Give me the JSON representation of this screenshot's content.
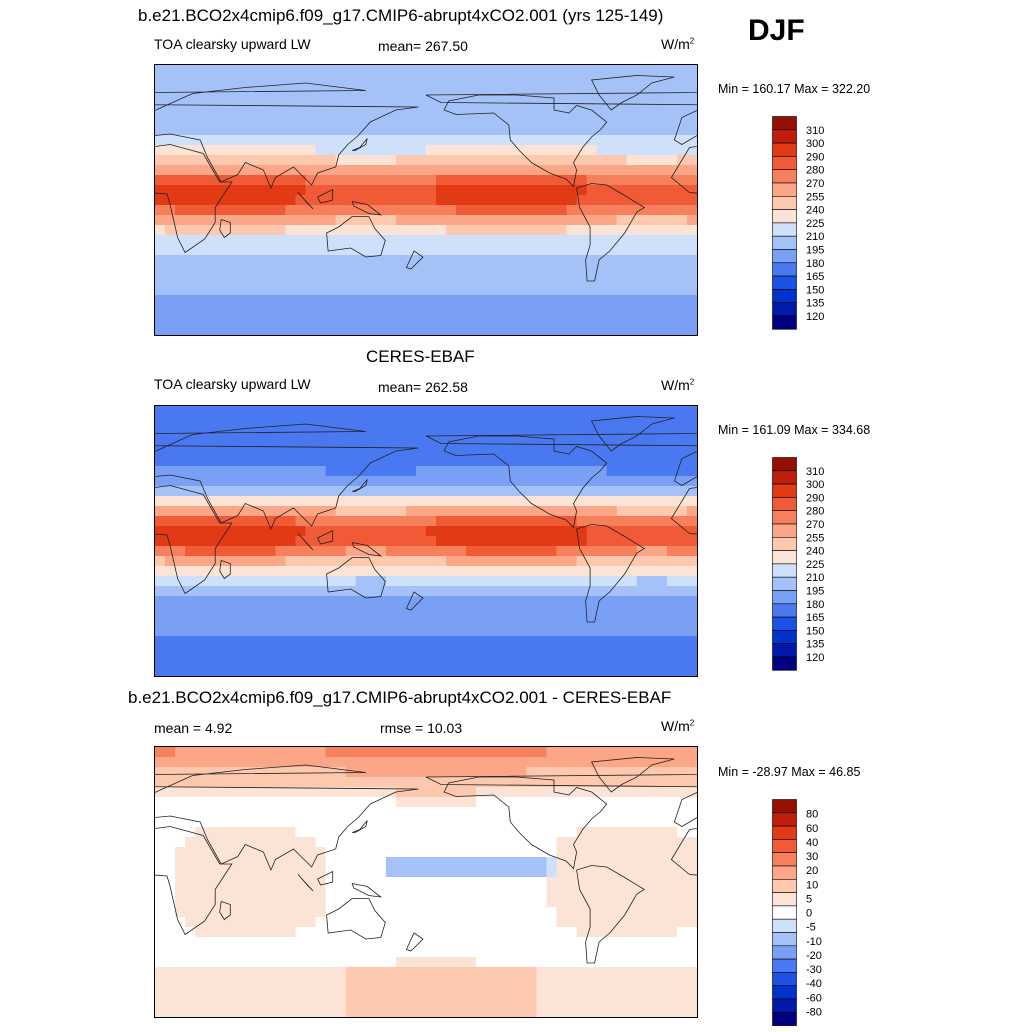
{
  "season": "DJF",
  "colors": {
    "abs_levels": [
      "#000080",
      "#0019aa",
      "#0033cc",
      "#1a52e6",
      "#4a78f0",
      "#7aa0f5",
      "#a5c2f8",
      "#cfe0fb",
      "#fbe4d6",
      "#fcc8ae",
      "#fba687",
      "#f7805c",
      "#f05a36",
      "#e23a14",
      "#c01e0a",
      "#931003"
    ],
    "diff_levels": [
      "#000080",
      "#0019aa",
      "#0033cc",
      "#1a52e6",
      "#4a78f0",
      "#7aa0f5",
      "#a5c2f8",
      "#cfe0fb",
      "#ffffff",
      "#fbe4d6",
      "#fcc8ae",
      "#fba687",
      "#f7805c",
      "#f05a36",
      "#e23a14",
      "#c01e0a",
      "#931003"
    ]
  },
  "chart_data": [
    {
      "type": "heatmap",
      "title": "b.e21.BCO2x4cmip6.f09_g17.CMIP6-abrupt4xCO2.001 (yrs 125-149)",
      "variable": "TOA clearsky upward LW",
      "stat_left": "mean= 267.50",
      "units_base": "W/m",
      "units_exp": "2",
      "minmax": "Min = 160.17 Max = 322.20",
      "colorbar_levels": [
        "310",
        "300",
        "290",
        "280",
        "270",
        "255",
        "240",
        "225",
        "210",
        "195",
        "180",
        "165",
        "150",
        "135",
        "120"
      ],
      "variant": "model"
    },
    {
      "type": "heatmap",
      "title": "CERES-EBAF",
      "variable": "TOA clearsky upward LW",
      "stat_left": "mean= 262.58",
      "units_base": "W/m",
      "units_exp": "2",
      "minmax": "Min = 161.09 Max = 334.68",
      "colorbar_levels": [
        "310",
        "300",
        "290",
        "280",
        "270",
        "255",
        "240",
        "225",
        "210",
        "195",
        "180",
        "165",
        "150",
        "135",
        "120"
      ],
      "variant": "obs"
    },
    {
      "type": "heatmap",
      "title": "b.e21.BCO2x4cmip6.f09_g17.CMIP6-abrupt4xCO2.001 - CERES-EBAF",
      "stat_left": "mean =   4.92",
      "stat_center": "rmse =  10.03",
      "units_base": "W/m",
      "units_exp": "2",
      "minmax": "Min = -28.97 Max =  46.85",
      "colorbar_levels": [
        "80",
        "60",
        "40",
        "30",
        "20",
        "10",
        "5",
        "0",
        "-5",
        "-10",
        "-20",
        "-30",
        "-40",
        "-60",
        "-80"
      ],
      "variant": "diff"
    }
  ]
}
